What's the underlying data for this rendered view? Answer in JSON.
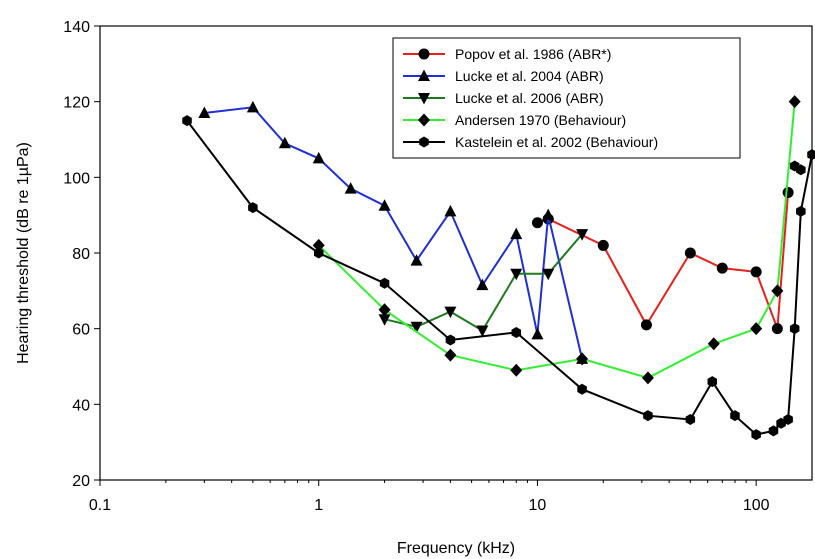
{
  "chart_data": {
    "type": "line",
    "xlabel": "Frequency (kHz)",
    "ylabel": "Hearing threshold (dB re 1µPa)",
    "xscale": "log",
    "xlim": [
      0.1,
      180
    ],
    "ylim": [
      20,
      140
    ],
    "xticks": [
      {
        "value": 0.1,
        "label": "0.1"
      },
      {
        "value": 1,
        "label": "1"
      },
      {
        "value": 10,
        "label": "10"
      },
      {
        "value": 100,
        "label": "100"
      }
    ],
    "yticks": [
      20,
      40,
      60,
      80,
      100,
      120,
      140
    ],
    "grid": false,
    "legend_position": "top-right",
    "series": [
      {
        "name": "Popov  et al. 1986 (ABR*)",
        "color": "#e8201a",
        "marker": "circle",
        "points": [
          [
            10,
            88
          ],
          [
            11.2,
            89
          ],
          [
            20,
            82
          ],
          [
            31.5,
            61
          ],
          [
            50,
            80
          ],
          [
            70,
            76
          ],
          [
            100,
            75
          ],
          [
            125,
            60
          ],
          [
            140,
            96
          ]
        ]
      },
      {
        "name": "Lucke  et al. 2004 (ABR)",
        "color": "#1f2fd6",
        "marker": "triangle-up",
        "points": [
          [
            0.3,
            117
          ],
          [
            0.5,
            118.5
          ],
          [
            0.7,
            109
          ],
          [
            1,
            105
          ],
          [
            1.4,
            97
          ],
          [
            2,
            92.5
          ],
          [
            2.8,
            78
          ],
          [
            4,
            91
          ],
          [
            5.6,
            71.5
          ],
          [
            8,
            85
          ],
          [
            10,
            58.5
          ],
          [
            11.2,
            90
          ],
          [
            16,
            52
          ]
        ]
      },
      {
        "name": "Lucke et al. 2006  (ABR)",
        "color": "#1f7a1f",
        "marker": "triangle-down",
        "points": [
          [
            2,
            62.5
          ],
          [
            2.8,
            60.5
          ],
          [
            4,
            64.5
          ],
          [
            5.6,
            59.5
          ],
          [
            8,
            74.5
          ],
          [
            11.2,
            74.5
          ],
          [
            16,
            85
          ]
        ]
      },
      {
        "name": "Andersen 1970 (Behaviour)",
        "color": "#33ee33",
        "marker": "diamond",
        "points": [
          [
            1,
            82
          ],
          [
            2,
            65
          ],
          [
            4,
            53
          ],
          [
            8,
            49
          ],
          [
            16,
            52
          ],
          [
            32,
            47
          ],
          [
            64,
            56
          ],
          [
            100,
            60
          ],
          [
            125,
            70
          ],
          [
            150,
            120
          ]
        ]
      },
      {
        "name": "Kastelein et al. 2002 (Behaviour)",
        "color": "#000000",
        "marker": "hexagon",
        "points": [
          [
            0.25,
            115
          ],
          [
            0.5,
            92
          ],
          [
            1,
            80
          ],
          [
            2,
            72
          ],
          [
            4,
            57
          ],
          [
            8,
            59
          ],
          [
            16,
            44
          ],
          [
            32,
            37
          ],
          [
            50,
            36
          ],
          [
            63,
            46
          ],
          [
            80,
            37
          ],
          [
            100,
            32
          ],
          [
            120,
            33
          ],
          [
            130,
            35
          ],
          [
            140,
            36
          ],
          [
            150,
            60
          ],
          [
            160,
            91
          ],
          [
            180,
            106
          ]
        ]
      },
      {
        "name": "",
        "color": "#000000",
        "marker": "hexagon",
        "points": [
          [
            150,
            103
          ],
          [
            160,
            102
          ]
        ]
      }
    ]
  }
}
